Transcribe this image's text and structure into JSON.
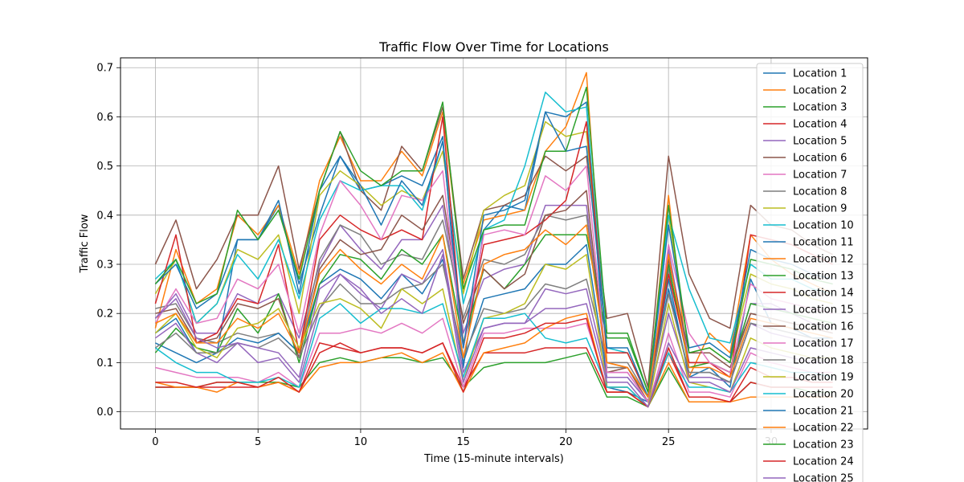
{
  "chart_data": {
    "type": "line",
    "title": "Traffic Flow Over Time for Locations",
    "xlabel": "Time (15-minute intervals)",
    "ylabel": "Traffic Flow",
    "xlim": [
      -1.7,
      34.7
    ],
    "ylim": [
      -0.035,
      0.72
    ],
    "xticks": [
      0,
      5,
      10,
      15,
      20,
      25,
      30
    ],
    "yticks": [
      0.0,
      0.1,
      0.2,
      0.3,
      0.4,
      0.5,
      0.6,
      0.7
    ],
    "xtick_labels": [
      "0",
      "5",
      "10",
      "15",
      "20",
      "25",
      "30"
    ],
    "ytick_labels": [
      "0.0",
      "0.1",
      "0.2",
      "0.3",
      "0.4",
      "0.5",
      "0.6",
      "0.7"
    ],
    "grid": true,
    "legend_position": "upper-right",
    "series": [
      {
        "name": "Location 1",
        "color": "#1f77b4",
        "values": [
          0.14,
          0.12,
          0.1,
          0.12,
          0.35,
          0.35,
          0.42,
          0.26,
          0.4,
          0.52,
          0.45,
          0.46,
          0.48,
          0.46,
          0.56,
          0.09,
          0.37,
          0.42,
          0.41,
          0.61,
          0.6,
          0.63,
          0.05,
          0.04,
          0.02,
          0.27,
          0.07,
          0.09,
          0.05,
          0.27,
          0.18,
          0.17,
          0.15,
          0.15
        ]
      },
      {
        "name": "Location 2",
        "color": "#ff7f0e",
        "values": [
          0.17,
          0.33,
          0.22,
          0.25,
          0.4,
          0.36,
          0.42,
          0.28,
          0.47,
          0.56,
          0.47,
          0.47,
          0.53,
          0.48,
          0.61,
          0.26,
          0.39,
          0.4,
          0.41,
          0.53,
          0.58,
          0.69,
          0.1,
          0.09,
          0.03,
          0.44,
          0.07,
          0.16,
          0.12,
          0.36,
          0.31,
          0.28,
          0.26,
          0.24
        ]
      },
      {
        "name": "Location 3",
        "color": "#2ca02c",
        "values": [
          0.05,
          0.05,
          0.05,
          0.06,
          0.06,
          0.06,
          0.06,
          0.05,
          0.1,
          0.11,
          0.1,
          0.11,
          0.11,
          0.1,
          0.11,
          0.05,
          0.09,
          0.1,
          0.1,
          0.1,
          0.11,
          0.12,
          0.03,
          0.03,
          0.01,
          0.09,
          0.02,
          0.02,
          0.02,
          0.06,
          0.05,
          0.05,
          0.04,
          0.04
        ]
      },
      {
        "name": "Location 4",
        "color": "#d62728",
        "values": [
          0.05,
          0.05,
          0.05,
          0.05,
          0.05,
          0.05,
          0.06,
          0.04,
          0.12,
          0.14,
          0.12,
          0.13,
          0.13,
          0.12,
          0.14,
          0.05,
          0.12,
          0.12,
          0.12,
          0.13,
          0.13,
          0.13,
          0.04,
          0.04,
          0.01,
          0.12,
          0.03,
          0.03,
          0.02,
          0.09,
          0.07,
          0.07,
          0.06,
          0.06
        ]
      },
      {
        "name": "Location 5",
        "color": "#9467bd",
        "values": [
          0.19,
          0.24,
          0.16,
          0.16,
          0.24,
          0.22,
          0.24,
          0.15,
          0.3,
          0.38,
          0.33,
          0.29,
          0.35,
          0.35,
          0.42,
          0.16,
          0.27,
          0.29,
          0.3,
          0.42,
          0.42,
          0.42,
          0.08,
          0.08,
          0.02,
          0.33,
          0.1,
          0.1,
          0.08,
          0.22,
          0.22,
          0.2,
          0.18,
          0.17
        ]
      },
      {
        "name": "Location 6",
        "color": "#8c564b",
        "values": [
          0.3,
          0.39,
          0.25,
          0.31,
          0.4,
          0.4,
          0.5,
          0.29,
          0.45,
          0.57,
          0.45,
          0.41,
          0.54,
          0.49,
          0.62,
          0.27,
          0.41,
          0.42,
          0.44,
          0.52,
          0.49,
          0.52,
          0.19,
          0.2,
          0.05,
          0.52,
          0.28,
          0.19,
          0.17,
          0.42,
          0.38,
          0.37,
          0.34,
          0.32
        ]
      },
      {
        "name": "Location 7",
        "color": "#e377c2",
        "values": [
          0.09,
          0.08,
          0.07,
          0.07,
          0.07,
          0.06,
          0.08,
          0.05,
          0.16,
          0.16,
          0.17,
          0.16,
          0.18,
          0.16,
          0.19,
          0.05,
          0.16,
          0.16,
          0.17,
          0.17,
          0.17,
          0.18,
          0.05,
          0.05,
          0.01,
          0.16,
          0.04,
          0.04,
          0.03,
          0.12,
          0.1,
          0.09,
          0.08,
          0.08
        ]
      },
      {
        "name": "Location 8",
        "color": "#7f7f7f",
        "values": [
          0.21,
          0.22,
          0.15,
          0.14,
          0.16,
          0.15,
          0.16,
          0.12,
          0.31,
          0.38,
          0.36,
          0.3,
          0.32,
          0.31,
          0.39,
          0.19,
          0.31,
          0.3,
          0.32,
          0.4,
          0.39,
          0.4,
          0.09,
          0.09,
          0.02,
          0.29,
          0.1,
          0.1,
          0.08,
          0.2,
          0.19,
          0.18,
          0.17,
          0.16
        ]
      },
      {
        "name": "Location 9",
        "color": "#bcbd22",
        "values": [
          0.24,
          0.31,
          0.18,
          0.22,
          0.33,
          0.31,
          0.36,
          0.2,
          0.44,
          0.49,
          0.46,
          0.42,
          0.45,
          0.43,
          0.53,
          0.24,
          0.41,
          0.44,
          0.46,
          0.59,
          0.56,
          0.57,
          0.12,
          0.12,
          0.03,
          0.4,
          0.12,
          0.13,
          0.1,
          0.28,
          0.26,
          0.25,
          0.23,
          0.22
        ]
      },
      {
        "name": "Location 10",
        "color": "#17becf",
        "values": [
          0.27,
          0.31,
          0.18,
          0.22,
          0.32,
          0.27,
          0.35,
          0.23,
          0.39,
          0.47,
          0.45,
          0.46,
          0.46,
          0.41,
          0.55,
          0.22,
          0.37,
          0.39,
          0.5,
          0.65,
          0.61,
          0.62,
          0.13,
          0.12,
          0.03,
          0.4,
          0.25,
          0.15,
          0.14,
          0.3,
          0.27,
          0.27,
          0.25,
          0.24
        ]
      },
      {
        "name": "Location 11",
        "color": "#1f77b4",
        "values": [
          0.16,
          0.19,
          0.12,
          0.12,
          0.15,
          0.14,
          0.16,
          0.12,
          0.26,
          0.29,
          0.27,
          0.23,
          0.28,
          0.24,
          0.31,
          0.1,
          0.23,
          0.24,
          0.25,
          0.3,
          0.3,
          0.34,
          0.07,
          0.07,
          0.02,
          0.25,
          0.08,
          0.08,
          0.06,
          0.18,
          0.17,
          0.16,
          0.15,
          0.14
        ]
      },
      {
        "name": "Location 12",
        "color": "#ff7f0e",
        "values": [
          0.06,
          0.05,
          0.05,
          0.04,
          0.06,
          0.05,
          0.06,
          0.04,
          0.09,
          0.1,
          0.1,
          0.11,
          0.12,
          0.1,
          0.12,
          0.04,
          0.12,
          0.13,
          0.14,
          0.17,
          0.19,
          0.2,
          0.04,
          0.04,
          0.01,
          0.1,
          0.02,
          0.02,
          0.02,
          0.03,
          0.03,
          0.03,
          0.03,
          0.03
        ]
      },
      {
        "name": "Location 13",
        "color": "#2ca02c",
        "values": [
          0.12,
          0.17,
          0.13,
          0.12,
          0.21,
          0.16,
          0.24,
          0.1,
          0.26,
          0.32,
          0.31,
          0.27,
          0.33,
          0.3,
          0.36,
          0.14,
          0.29,
          0.25,
          0.3,
          0.36,
          0.36,
          0.36,
          0.15,
          0.15,
          0.04,
          0.3,
          0.09,
          0.1,
          0.08,
          0.22,
          0.21,
          0.2,
          0.19,
          0.18
        ]
      },
      {
        "name": "Location 14",
        "color": "#d62728",
        "values": [
          0.22,
          0.36,
          0.14,
          0.16,
          0.23,
          0.22,
          0.34,
          0.12,
          0.35,
          0.4,
          0.37,
          0.35,
          0.37,
          0.35,
          0.6,
          0.13,
          0.34,
          0.35,
          0.36,
          0.39,
          0.43,
          0.59,
          0.12,
          0.12,
          0.03,
          0.28,
          0.1,
          0.1,
          0.07,
          0.36,
          0.35,
          0.34,
          0.32,
          0.3
        ]
      },
      {
        "name": "Location 15",
        "color": "#9467bd",
        "values": [
          0.15,
          0.18,
          0.12,
          0.1,
          0.14,
          0.1,
          0.11,
          0.06,
          0.21,
          0.28,
          0.24,
          0.21,
          0.28,
          0.26,
          0.33,
          0.08,
          0.17,
          0.18,
          0.18,
          0.25,
          0.24,
          0.25,
          0.07,
          0.07,
          0.02,
          0.2,
          0.07,
          0.07,
          0.06,
          0.18,
          0.16,
          0.15,
          0.14,
          0.13
        ]
      },
      {
        "name": "Location 16",
        "color": "#8c564b",
        "values": [
          0.2,
          0.21,
          0.14,
          0.15,
          0.22,
          0.21,
          0.23,
          0.11,
          0.29,
          0.35,
          0.32,
          0.33,
          0.4,
          0.37,
          0.44,
          0.18,
          0.29,
          0.25,
          0.28,
          0.4,
          0.41,
          0.45,
          0.08,
          0.09,
          0.02,
          0.31,
          0.12,
          0.12,
          0.09,
          0.2,
          0.19,
          0.18,
          0.17,
          0.16
        ]
      },
      {
        "name": "Location 17",
        "color": "#e377c2",
        "values": [
          0.18,
          0.25,
          0.18,
          0.19,
          0.27,
          0.25,
          0.3,
          0.16,
          0.36,
          0.47,
          0.42,
          0.35,
          0.44,
          0.43,
          0.49,
          0.13,
          0.36,
          0.37,
          0.36,
          0.48,
          0.45,
          0.5,
          0.08,
          0.08,
          0.02,
          0.34,
          0.16,
          0.1,
          0.08,
          0.26,
          0.23,
          0.22,
          0.21,
          0.2
        ]
      },
      {
        "name": "Location 18",
        "color": "#7f7f7f",
        "values": [
          0.13,
          0.16,
          0.12,
          0.12,
          0.14,
          0.13,
          0.15,
          0.11,
          0.21,
          0.26,
          0.22,
          0.22,
          0.25,
          0.26,
          0.3,
          0.11,
          0.21,
          0.2,
          0.21,
          0.26,
          0.25,
          0.27,
          0.1,
          0.1,
          0.03,
          0.24,
          0.08,
          0.08,
          0.06,
          0.18,
          0.17,
          0.16,
          0.15,
          0.14
        ]
      },
      {
        "name": "Location 19",
        "color": "#bcbd22",
        "values": [
          0.16,
          0.2,
          0.13,
          0.11,
          0.17,
          0.18,
          0.21,
          0.13,
          0.22,
          0.23,
          0.21,
          0.17,
          0.25,
          0.22,
          0.25,
          0.06,
          0.19,
          0.2,
          0.22,
          0.3,
          0.29,
          0.32,
          0.05,
          0.05,
          0.01,
          0.22,
          0.06,
          0.05,
          0.04,
          0.15,
          0.13,
          0.12,
          0.11,
          0.11
        ]
      },
      {
        "name": "Location 20",
        "color": "#17becf",
        "values": [
          0.13,
          0.1,
          0.08,
          0.08,
          0.06,
          0.06,
          0.07,
          0.05,
          0.19,
          0.22,
          0.18,
          0.21,
          0.21,
          0.2,
          0.22,
          0.07,
          0.19,
          0.19,
          0.2,
          0.15,
          0.14,
          0.15,
          0.05,
          0.05,
          0.01,
          0.12,
          0.05,
          0.05,
          0.04,
          0.1,
          0.09,
          0.08,
          0.08,
          0.07
        ]
      },
      {
        "name": "Location 21",
        "color": "#1f77b4",
        "values": [
          0.26,
          0.3,
          0.21,
          0.24,
          0.35,
          0.35,
          0.43,
          0.24,
          0.45,
          0.52,
          0.46,
          0.38,
          0.47,
          0.42,
          0.55,
          0.13,
          0.4,
          0.41,
          0.43,
          0.61,
          0.53,
          0.54,
          0.13,
          0.13,
          0.03,
          0.38,
          0.13,
          0.14,
          0.11,
          0.33,
          0.31,
          0.3,
          0.28,
          0.27
        ]
      },
      {
        "name": "Location 22",
        "color": "#ff7f0e",
        "values": [
          0.18,
          0.2,
          0.14,
          0.14,
          0.19,
          0.17,
          0.2,
          0.12,
          0.28,
          0.33,
          0.29,
          0.26,
          0.3,
          0.27,
          0.36,
          0.11,
          0.3,
          0.32,
          0.33,
          0.37,
          0.34,
          0.38,
          0.1,
          0.09,
          0.03,
          0.32,
          0.09,
          0.09,
          0.07,
          0.19,
          0.18,
          0.17,
          0.16,
          0.15
        ]
      },
      {
        "name": "Location 23",
        "color": "#2ca02c",
        "values": [
          0.26,
          0.31,
          0.22,
          0.24,
          0.41,
          0.35,
          0.41,
          0.27,
          0.45,
          0.57,
          0.49,
          0.46,
          0.49,
          0.49,
          0.63,
          0.25,
          0.37,
          0.38,
          0.38,
          0.53,
          0.53,
          0.66,
          0.16,
          0.16,
          0.04,
          0.42,
          0.12,
          0.13,
          0.1,
          0.31,
          0.3,
          0.29,
          0.27,
          0.26
        ]
      },
      {
        "name": "Location 24",
        "color": "#d62728",
        "values": [
          0.06,
          0.06,
          0.05,
          0.06,
          0.06,
          0.05,
          0.07,
          0.04,
          0.14,
          0.13,
          0.12,
          0.13,
          0.13,
          0.12,
          0.14,
          0.04,
          0.15,
          0.15,
          0.16,
          0.18,
          0.18,
          0.19,
          0.04,
          0.04,
          0.01,
          0.13,
          0.03,
          0.03,
          0.02,
          0.06,
          0.05,
          0.05,
          0.05,
          0.05
        ]
      },
      {
        "name": "Location 25",
        "color": "#9467bd",
        "values": [
          0.19,
          0.23,
          0.15,
          0.13,
          0.14,
          0.13,
          0.12,
          0.07,
          0.25,
          0.28,
          0.25,
          0.2,
          0.23,
          0.2,
          0.32,
          0.06,
          0.17,
          0.18,
          0.18,
          0.21,
          0.21,
          0.22,
          0.06,
          0.06,
          0.01,
          0.14,
          0.06,
          0.06,
          0.04,
          0.13,
          0.12,
          0.11,
          0.1,
          0.1
        ]
      }
    ]
  }
}
